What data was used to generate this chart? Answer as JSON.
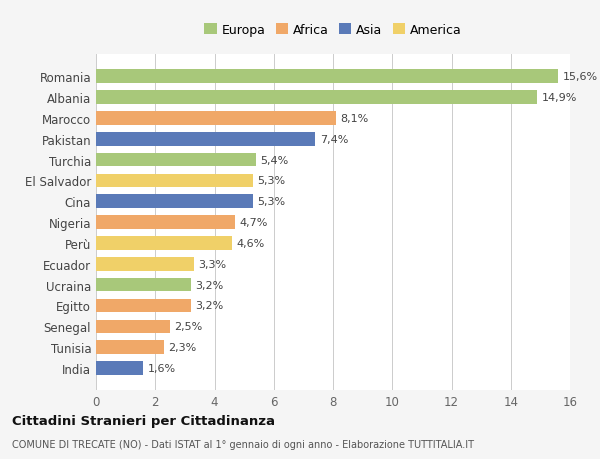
{
  "categories": [
    "Romania",
    "Albania",
    "Marocco",
    "Pakistan",
    "Turchia",
    "El Salvador",
    "Cina",
    "Nigeria",
    "Perù",
    "Ecuador",
    "Ucraina",
    "Egitto",
    "Senegal",
    "Tunisia",
    "India"
  ],
  "values": [
    15.6,
    14.9,
    8.1,
    7.4,
    5.4,
    5.3,
    5.3,
    4.7,
    4.6,
    3.3,
    3.2,
    3.2,
    2.5,
    2.3,
    1.6
  ],
  "labels": [
    "15,6%",
    "14,9%",
    "8,1%",
    "7,4%",
    "5,4%",
    "5,3%",
    "5,3%",
    "4,7%",
    "4,6%",
    "3,3%",
    "3,2%",
    "3,2%",
    "2,5%",
    "2,3%",
    "1,6%"
  ],
  "continent": [
    "Europa",
    "Europa",
    "Africa",
    "Asia",
    "Europa",
    "America",
    "Asia",
    "Africa",
    "America",
    "America",
    "Europa",
    "Africa",
    "Africa",
    "Africa",
    "Asia"
  ],
  "colors": {
    "Europa": "#a8c87a",
    "Africa": "#f0a868",
    "Asia": "#5a7ab8",
    "America": "#f0d068"
  },
  "legend_order": [
    "Europa",
    "Africa",
    "Asia",
    "America"
  ],
  "title": "Cittadini Stranieri per Cittadinanza",
  "subtitle": "COMUNE DI TRECATE (NO) - Dati ISTAT al 1° gennaio di ogni anno - Elaborazione TUTTITALIA.IT",
  "xlim": [
    0,
    16
  ],
  "xticks": [
    0,
    2,
    4,
    6,
    8,
    10,
    12,
    14,
    16
  ],
  "background_color": "#f5f5f5",
  "bar_background": "#ffffff"
}
